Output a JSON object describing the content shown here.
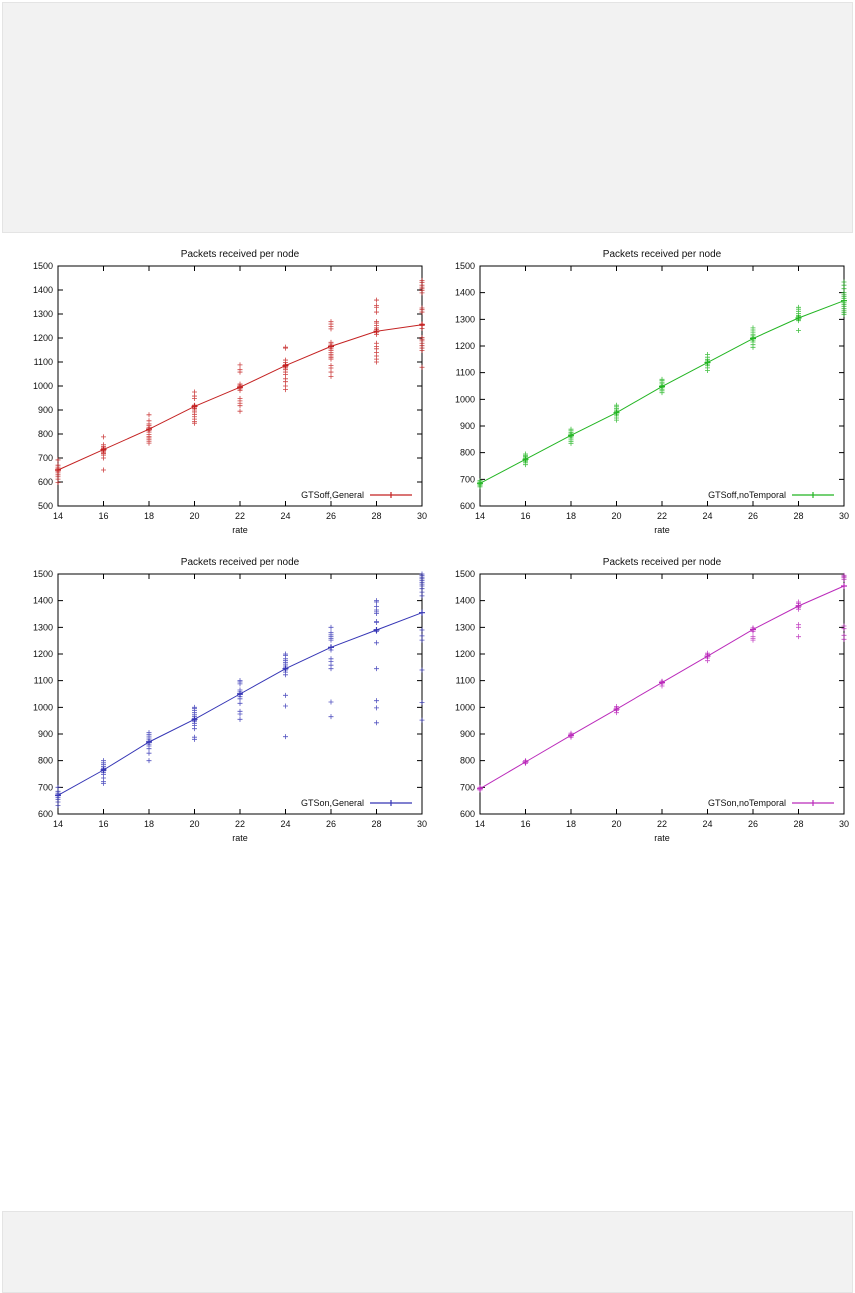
{
  "page": {
    "background": "#ffffff",
    "band_color": "#f2f2f2",
    "band_border_color": "#e4e4e4"
  },
  "chart_data": [
    {
      "type": "scatter",
      "name": "gtsoff-general",
      "title": "Packets received per node",
      "xlabel": "rate",
      "legend": "GTSoff,General",
      "color": "#c42222",
      "xlim": [
        14,
        30
      ],
      "ylim": [
        500,
        1500
      ],
      "xticks": [
        14,
        16,
        18,
        20,
        22,
        24,
        26,
        28,
        30
      ],
      "yticks": [
        500,
        600,
        700,
        800,
        900,
        1000,
        1100,
        1200,
        1300,
        1400,
        1500
      ],
      "x": [
        14,
        16,
        18,
        20,
        22,
        24,
        26,
        28,
        30
      ],
      "line": [
        650,
        735,
        820,
        915,
        995,
        1085,
        1165,
        1228,
        1255
      ],
      "scatter": [
        {
          "x": 14,
          "ys": [
            598,
            612,
            622,
            630,
            638,
            645,
            650,
            655,
            662,
            670,
            692
          ]
        },
        {
          "x": 16,
          "ys": [
            650,
            700,
            712,
            718,
            722,
            728,
            732,
            738,
            742,
            748,
            755,
            788
          ]
        },
        {
          "x": 18,
          "ys": [
            762,
            770,
            778,
            784,
            790,
            798,
            808,
            815,
            822,
            828,
            835,
            842,
            855,
            880
          ]
        },
        {
          "x": 20,
          "ys": [
            845,
            852,
            862,
            872,
            882,
            892,
            900,
            906,
            912,
            916,
            920,
            948,
            958,
            975
          ]
        },
        {
          "x": 22,
          "ys": [
            895,
            918,
            928,
            938,
            948,
            982,
            988,
            993,
            998,
            1003,
            1008,
            1058,
            1068,
            1088
          ]
        },
        {
          "x": 24,
          "ys": [
            985,
            1000,
            1018,
            1030,
            1048,
            1058,
            1068,
            1075,
            1080,
            1085,
            1090,
            1098,
            1108,
            1158,
            1162
          ]
        },
        {
          "x": 26,
          "ys": [
            1040,
            1058,
            1075,
            1085,
            1112,
            1118,
            1125,
            1132,
            1140,
            1148,
            1155,
            1162,
            1168,
            1175,
            1182,
            1238,
            1248,
            1258,
            1268
          ]
        },
        {
          "x": 28,
          "ys": [
            1100,
            1112,
            1125,
            1140,
            1155,
            1165,
            1178,
            1215,
            1222,
            1228,
            1235,
            1242,
            1252,
            1262,
            1268,
            1308,
            1328,
            1335,
            1358
          ]
        },
        {
          "x": 30,
          "ys": [
            1078,
            1148,
            1158,
            1168,
            1178,
            1188,
            1195,
            1202,
            1240,
            1252,
            1258,
            1308,
            1318,
            1325,
            1388,
            1398,
            1405,
            1412,
            1420,
            1432,
            1440
          ]
        }
      ]
    },
    {
      "type": "scatter",
      "name": "gtsoff-notemporal",
      "title": "Packets received per node",
      "xlabel": "rate",
      "legend": "GTSoff,noTemporal",
      "color": "#22b522",
      "xlim": [
        14,
        30
      ],
      "ylim": [
        600,
        1500
      ],
      "xticks": [
        14,
        16,
        18,
        20,
        22,
        24,
        26,
        28,
        30
      ],
      "yticks": [
        600,
        700,
        800,
        900,
        1000,
        1100,
        1200,
        1300,
        1400,
        1500
      ],
      "x": [
        14,
        16,
        18,
        20,
        22,
        24,
        26,
        28,
        30
      ],
      "line": [
        685,
        775,
        865,
        950,
        1048,
        1138,
        1228,
        1305,
        1370
      ],
      "scatter": [
        {
          "x": 14,
          "ys": [
            672,
            678,
            682,
            686,
            690,
            695
          ]
        },
        {
          "x": 16,
          "ys": [
            755,
            762,
            768,
            772,
            776,
            780,
            785,
            790,
            795
          ]
        },
        {
          "x": 18,
          "ys": [
            835,
            842,
            848,
            855,
            860,
            865,
            870,
            875,
            882,
            888
          ]
        },
        {
          "x": 20,
          "ys": [
            922,
            930,
            938,
            944,
            950,
            955,
            960,
            966,
            972,
            978
          ]
        },
        {
          "x": 22,
          "ys": [
            1025,
            1032,
            1038,
            1044,
            1048,
            1052,
            1058,
            1064,
            1070,
            1075
          ]
        },
        {
          "x": 24,
          "ys": [
            1108,
            1118,
            1126,
            1132,
            1138,
            1144,
            1150,
            1158,
            1168
          ]
        },
        {
          "x": 26,
          "ys": [
            1195,
            1205,
            1215,
            1222,
            1228,
            1232,
            1238,
            1244,
            1252,
            1260,
            1268
          ]
        },
        {
          "x": 28,
          "ys": [
            1258,
            1295,
            1300,
            1305,
            1310,
            1315,
            1322,
            1330,
            1338,
            1345
          ]
        },
        {
          "x": 30,
          "ys": [
            1318,
            1325,
            1332,
            1340,
            1348,
            1355,
            1362,
            1370,
            1378,
            1385,
            1392,
            1400,
            1415,
            1428,
            1440
          ]
        }
      ]
    },
    {
      "type": "scatter",
      "name": "gtson-general",
      "title": "Packets received per node",
      "xlabel": "rate",
      "legend": "GTSon,General",
      "color": "#3535b5",
      "xlim": [
        14,
        30
      ],
      "ylim": [
        600,
        1500
      ],
      "xticks": [
        14,
        16,
        18,
        20,
        22,
        24,
        26,
        28,
        30
      ],
      "yticks": [
        600,
        700,
        800,
        900,
        1000,
        1100,
        1200,
        1300,
        1400,
        1500
      ],
      "x": [
        14,
        16,
        18,
        20,
        22,
        24,
        26,
        28,
        30
      ],
      "line": [
        670,
        765,
        870,
        955,
        1050,
        1145,
        1225,
        1290,
        1355
      ],
      "scatter": [
        {
          "x": 14,
          "ys": [
            632,
            645,
            655,
            662,
            668,
            672,
            678,
            685,
            700
          ]
        },
        {
          "x": 16,
          "ys": [
            715,
            722,
            735,
            748,
            755,
            762,
            768,
            772,
            778,
            785,
            792,
            800
          ]
        },
        {
          "x": 18,
          "ys": [
            800,
            828,
            845,
            855,
            862,
            868,
            872,
            878,
            885,
            892,
            898,
            905
          ]
        },
        {
          "x": 20,
          "ys": [
            880,
            888,
            920,
            932,
            940,
            948,
            952,
            958,
            965,
            972,
            980,
            988,
            995,
            1000
          ]
        },
        {
          "x": 22,
          "ys": [
            955,
            975,
            985,
            1015,
            1032,
            1040,
            1048,
            1052,
            1058,
            1065,
            1088,
            1095,
            1100
          ]
        },
        {
          "x": 24,
          "ys": [
            890,
            1005,
            1045,
            1122,
            1132,
            1140,
            1148,
            1155,
            1162,
            1168,
            1175,
            1182,
            1195,
            1200
          ]
        },
        {
          "x": 26,
          "ys": [
            965,
            1020,
            1145,
            1158,
            1172,
            1182,
            1215,
            1225,
            1252,
            1258,
            1265,
            1272,
            1280,
            1300
          ]
        },
        {
          "x": 28,
          "ys": [
            942,
            998,
            1025,
            1145,
            1242,
            1285,
            1292,
            1318,
            1322,
            1352,
            1358,
            1365,
            1378,
            1395,
            1400
          ]
        },
        {
          "x": 30,
          "ys": [
            952,
            1018,
            1140,
            1252,
            1268,
            1290,
            1418,
            1432,
            1445,
            1455,
            1462,
            1468,
            1475,
            1482,
            1488,
            1495,
            1500
          ]
        }
      ]
    },
    {
      "type": "scatter",
      "name": "gtson-notemporal",
      "title": "Packets received per node",
      "xlabel": "rate",
      "legend": "GTSon,noTemporal",
      "color": "#bb2bbb",
      "xlim": [
        14,
        30
      ],
      "ylim": [
        600,
        1500
      ],
      "xticks": [
        14,
        16,
        18,
        20,
        22,
        24,
        26,
        28,
        30
      ],
      "yticks": [
        600,
        700,
        800,
        900,
        1000,
        1100,
        1200,
        1300,
        1400,
        1500
      ],
      "x": [
        14,
        16,
        18,
        20,
        22,
        24,
        26,
        28,
        30
      ],
      "line": [
        695,
        795,
        895,
        993,
        1093,
        1192,
        1292,
        1380,
        1455
      ],
      "scatter": [
        {
          "x": 14,
          "ys": [
            690,
            695,
            700
          ]
        },
        {
          "x": 16,
          "ys": [
            790,
            795,
            800
          ]
        },
        {
          "x": 18,
          "ys": [
            888,
            893,
            898,
            903
          ]
        },
        {
          "x": 20,
          "ys": [
            980,
            988,
            993,
            998,
            1003
          ]
        },
        {
          "x": 22,
          "ys": [
            1080,
            1088,
            1093,
            1098
          ]
        },
        {
          "x": 24,
          "ys": [
            1175,
            1185,
            1192,
            1198,
            1203
          ]
        },
        {
          "x": 26,
          "ys": [
            1252,
            1258,
            1265,
            1285,
            1292,
            1298
          ]
        },
        {
          "x": 28,
          "ys": [
            1265,
            1300,
            1310,
            1368,
            1375,
            1382,
            1390,
            1395
          ]
        },
        {
          "x": 30,
          "ys": [
            1255,
            1270,
            1295,
            1305,
            1480,
            1486,
            1490,
            1495
          ]
        }
      ]
    }
  ]
}
